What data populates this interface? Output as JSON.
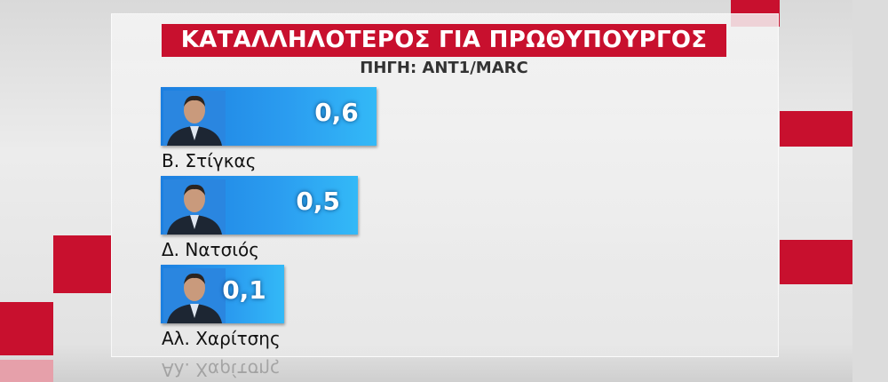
{
  "chart_data": {
    "type": "bar",
    "orientation": "horizontal",
    "title": "ΚΑΤΑΛΛΗΛΟΤΕΡΟΣ ΓΙΑ ΠΡΩΘΥΠΟΥΡΓΟΣ",
    "subtitle": "ΠΗΓΗ: ΑΝΤ1/MARC",
    "categories": [
      "Β. Στίγκας",
      "Δ. Νατσιός",
      "Αλ. Χαρίτσης"
    ],
    "values": [
      0.6,
      0.5,
      0.1
    ],
    "value_labels": [
      "0,6",
      "0,5",
      "0,1"
    ],
    "grid": false,
    "colors": {
      "bar": "#2b9df0",
      "title_bg": "#c8102e",
      "accent": "#c8102e"
    }
  }
}
